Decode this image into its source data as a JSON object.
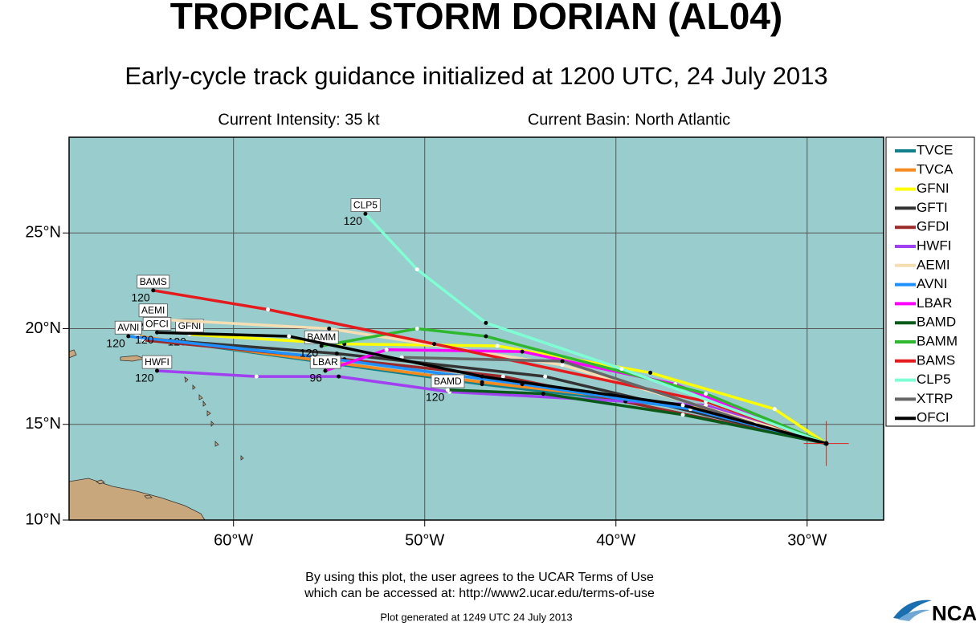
{
  "map": {
    "title": "TROPICAL STORM DORIAN (AL04)",
    "subtitle": "Early-cycle track guidance initialized at 1200 UTC, 24 July 2013",
    "intensity": "Current Intensity: 35 kt",
    "basin": "Current Basin: North Atlantic",
    "lonlim": [
      -68.6,
      -26
    ],
    "latlim": [
      10,
      30
    ],
    "lonticks": [
      {
        "value": -60,
        "label": "60°W"
      },
      {
        "value": -50,
        "label": "50°W"
      },
      {
        "value": -40,
        "label": "40°W"
      },
      {
        "value": -30,
        "label": "30°W"
      }
    ],
    "latticks": [
      {
        "value": 10,
        "label": "10°N"
      },
      {
        "value": 15,
        "label": "15°N"
      },
      {
        "value": 20,
        "label": "20°N"
      },
      {
        "value": 25,
        "label": "25°N"
      }
    ],
    "current_position": [
      -29,
      14
    ],
    "marker_color": "#e0201b",
    "tracks": [
      {
        "name": "TVCE",
        "color": "#13808c",
        "lon": [
          -29,
          -36.5,
          -47,
          -65.1
        ],
        "lat": [
          14,
          15.9,
          17.1,
          19.6
        ]
      },
      {
        "name": "TVCA",
        "color": "#f58a1f",
        "lon": [
          -29,
          -36.4,
          -47,
          -65
        ],
        "lat": [
          14,
          16,
          17.2,
          19.6
        ]
      },
      {
        "name": "GFNI",
        "color": "#ffff00",
        "lon": [
          -29,
          -31.7,
          -38.2,
          -46.2,
          -54.2,
          -62.3
        ],
        "lat": [
          14,
          15.8,
          17.7,
          19.1,
          19.2,
          19.7
        ],
        "tagged": true,
        "end_label": "120"
      },
      {
        "name": "GFTI",
        "color": "#333333",
        "lon": [
          -29,
          -43.7,
          -54.6,
          -64.9
        ],
        "lat": [
          14,
          17.5,
          18.7,
          19.5
        ]
      },
      {
        "name": "GFDI",
        "color": "#9b2a2a",
        "lon": [
          -29,
          -45.9,
          -54.2,
          -64.7
        ],
        "lat": [
          14,
          17.5,
          18.4,
          19.4
        ]
      },
      {
        "name": "HWFI",
        "color": "#a040f0",
        "lon": [
          -29,
          -35.3,
          -39.5,
          -48.7,
          -54.5,
          -58.8,
          -64
        ],
        "lat": [
          14,
          16,
          16.2,
          16.7,
          17.5,
          17.5,
          17.8
        ],
        "tagged": true,
        "end_label": "120"
      },
      {
        "name": "AEMI",
        "color": "#f5deb3",
        "lon": [
          -29,
          -42.8,
          -55,
          -64.2
        ],
        "lat": [
          14,
          18.1,
          20,
          20.5
        ],
        "tagged": true,
        "end_label": "120"
      },
      {
        "name": "AVNI",
        "color": "#1e90ff",
        "lon": [
          -29,
          -36.1,
          -44.9,
          -55.4,
          -65.5
        ],
        "lat": [
          14,
          15.8,
          17.1,
          18.5,
          19.6
        ],
        "tagged": true,
        "end_label": "120"
      },
      {
        "name": "LBAR",
        "color": "#ff00ff",
        "lon": [
          -29,
          -36.9,
          -44.9,
          -52,
          -55.2
        ],
        "lat": [
          14,
          17.1,
          18.8,
          18.9,
          17.8
        ],
        "tagged": true,
        "end_label": "96"
      },
      {
        "name": "BAMD",
        "color": "#0a5a1a",
        "lon": [
          -29,
          -36.5,
          -43.8,
          -48.8
        ],
        "lat": [
          14,
          15.5,
          16.6,
          16.8
        ],
        "tagged": true,
        "end_label": "120"
      },
      {
        "name": "BAMM",
        "color": "#2eb82e",
        "lon": [
          -29,
          -35.3,
          -46.8,
          -50.4,
          -55.4
        ],
        "lat": [
          14,
          16.6,
          19.6,
          20,
          19.1
        ],
        "tagged": true,
        "end_label": "120"
      },
      {
        "name": "BAMS",
        "color": "#e41a1c",
        "lon": [
          -29,
          -35.3,
          -49.5,
          -58.2,
          -64.2
        ],
        "lat": [
          14,
          16.2,
          19.2,
          21,
          22
        ],
        "tagged": true,
        "end_label": "120"
      },
      {
        "name": "CLP5",
        "color": "#7fffd4",
        "lon": [
          -29,
          -39.7,
          -46.8,
          -50.4,
          -53.1
        ],
        "lat": [
          14,
          17.9,
          20.3,
          23.1,
          26
        ],
        "tagged": true,
        "end_label": "120"
      },
      {
        "name": "XTRP",
        "color": "#666666",
        "lon": [
          -29,
          -32.7,
          -42.8,
          -51.2
        ],
        "lat": [
          14,
          15,
          18.3,
          18.5
        ]
      },
      {
        "name": "OFCI",
        "color": "#000000",
        "lon": [
          -29,
          -36.5,
          -47,
          -57.1,
          -64
        ],
        "lat": [
          14,
          16,
          17.5,
          19.6,
          19.8
        ],
        "tagged": true,
        "end_label": "120"
      }
    ],
    "terms_1": "By using this plot, the user agrees to the UCAR Terms of Use",
    "terms_2": "which can be accessed at: http://www2.ucar.edu/terms-of-use",
    "generated": "Plot generated at 1249 UTC   24 July 2013",
    "logo": "NCAR"
  }
}
